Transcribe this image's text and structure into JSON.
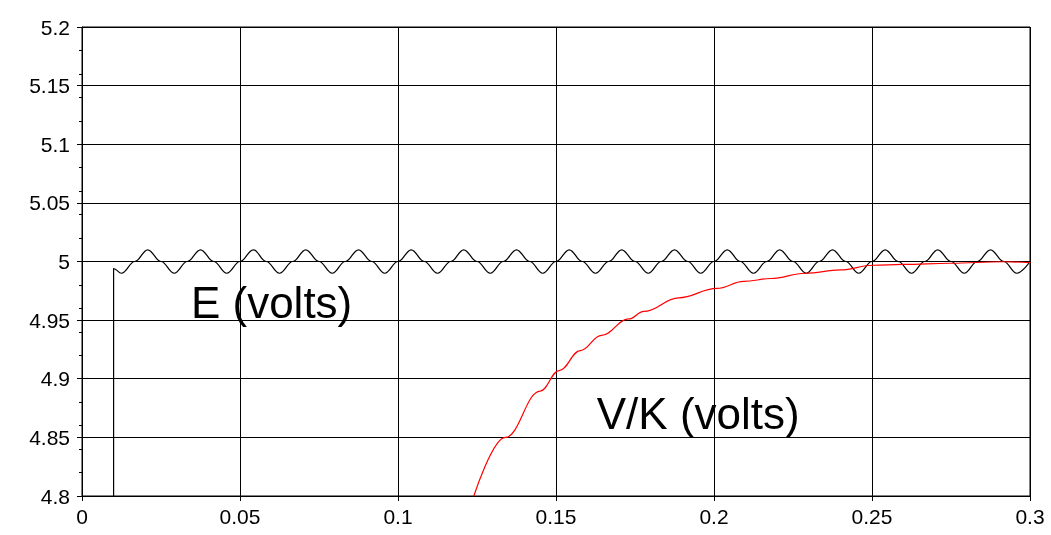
{
  "chart_data": {
    "type": "line",
    "xlim": [
      0,
      0.3
    ],
    "xticks": [
      0,
      0.05,
      0.1,
      0.15,
      0.2,
      0.25,
      0.3
    ],
    "ylim": [
      4.8,
      5.2
    ],
    "yticks": [
      4.8,
      4.85,
      4.9,
      4.95,
      5,
      5.05,
      5.1,
      5.15,
      5.2
    ],
    "grid": true,
    "legend": false,
    "marker": "none",
    "line_style": "solid",
    "series": [
      {
        "name": "E (volts)",
        "color": "#000000",
        "x": [
          0.01,
          0.01,
          0.0125,
          0.0167,
          0.0208,
          0.025,
          0.0292,
          0.0333,
          0.0375,
          0.0417,
          0.0458,
          0.05,
          0.0542,
          0.0583,
          0.0625,
          0.0667,
          0.0708,
          0.075,
          0.0792,
          0.0833,
          0.0875,
          0.0917,
          0.0958,
          0.1,
          0.1042,
          0.1083,
          0.1125,
          0.1167,
          0.1208,
          0.125,
          0.1292,
          0.1333,
          0.1375,
          0.1417,
          0.1458,
          0.15,
          0.1542,
          0.1583,
          0.1625,
          0.1667,
          0.1708,
          0.175,
          0.1792,
          0.1833,
          0.1875,
          0.1917,
          0.1958,
          0.2,
          0.2042,
          0.2083,
          0.2125,
          0.2167,
          0.2208,
          0.225,
          0.2292,
          0.2333,
          0.2375,
          0.2417,
          0.2458,
          0.25,
          0.2542,
          0.2583,
          0.2625,
          0.2667,
          0.2708,
          0.275,
          0.2792,
          0.2833,
          0.2875,
          0.2917,
          0.2958,
          0.3
        ],
        "values": [
          4.8,
          4.994,
          4.99,
          5,
          5.01,
          5,
          4.99,
          5,
          5.01,
          5,
          4.99,
          5,
          5.01,
          5,
          4.99,
          5,
          5.01,
          5,
          4.99,
          5,
          5.01,
          5,
          4.99,
          5,
          5.01,
          5,
          4.99,
          5,
          5.01,
          5,
          4.99,
          5,
          5.01,
          5,
          4.99,
          5,
          5.01,
          5,
          4.99,
          5,
          5.01,
          5,
          4.99,
          5,
          5.01,
          5,
          4.99,
          5,
          5.01,
          5,
          4.99,
          5,
          5.01,
          5,
          4.99,
          5,
          5.01,
          5,
          4.99,
          5,
          5.01,
          5,
          4.99,
          5,
          5.01,
          5,
          4.99,
          5,
          5.01,
          5,
          4.99,
          5
        ]
      },
      {
        "name": "V/K (volts)",
        "color": "#ff0000",
        "x": [
          0.124,
          0.134,
          0.145,
          0.151,
          0.1577,
          0.1644,
          0.173,
          0.1778,
          0.1888,
          0.2009,
          0.2094,
          0.218,
          0.2289,
          0.24,
          0.2503,
          0.26,
          0.2747,
          0.2915,
          0.3
        ],
        "values": [
          4.8,
          4.85,
          4.8895,
          4.907,
          4.924,
          4.937,
          4.951,
          4.9574,
          4.969,
          4.977,
          4.983,
          4.9855,
          4.99,
          4.9928,
          4.9968,
          4.9976,
          4.9985,
          4.9998,
          4.999
        ]
      }
    ]
  }
}
